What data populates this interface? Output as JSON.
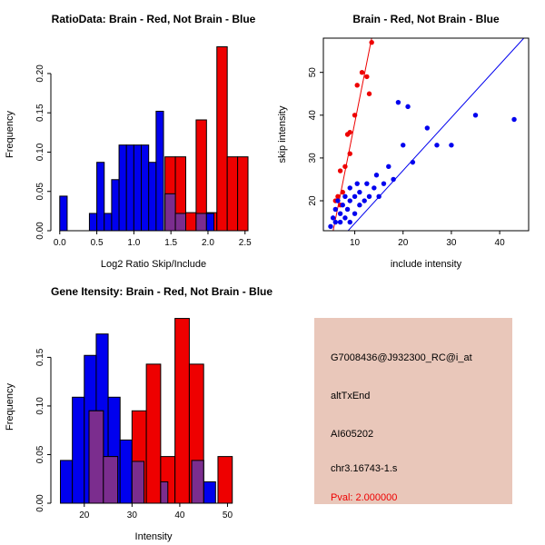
{
  "page": {
    "background": "#ffffff"
  },
  "palette": {
    "blue": "#0000ee",
    "red": "#ee0000",
    "purple": "#7b2d8e",
    "axis": "#000000"
  },
  "charts": [
    {
      "type": "bar",
      "title": "RatioData: Brain - Red, Not Brain - Blue",
      "xlabel": "Log2 Ratio Skip/Include",
      "ylabel": "Frequency",
      "xlim": [
        -0.12,
        2.65
      ],
      "ylim": [
        0,
        0.245
      ],
      "box": false,
      "legend": "none",
      "xticks": [
        {
          "v": 0,
          "l": "0.0"
        },
        {
          "v": 0.5,
          "l": "0.5"
        },
        {
          "v": 1,
          "l": "1.0"
        },
        {
          "v": 1.5,
          "l": "1.5"
        },
        {
          "v": 2,
          "l": "2.0"
        },
        {
          "v": 2.5,
          "l": "2.5"
        }
      ],
      "yticks": [
        {
          "v": 0,
          "l": "0.00"
        },
        {
          "v": 0.05,
          "l": "0.05"
        },
        {
          "v": 0.1,
          "l": "0.10"
        },
        {
          "v": 0.15,
          "l": "0.15"
        },
        {
          "v": 0.2,
          "l": "0.20"
        }
      ],
      "bars": [
        {
          "x0": 0.0,
          "x1": 0.1,
          "h": 0.044,
          "c": "blue"
        },
        {
          "x0": 0.4,
          "x1": 0.5,
          "h": 0.022,
          "c": "blue"
        },
        {
          "x0": 0.5,
          "x1": 0.6,
          "h": 0.087,
          "c": "blue"
        },
        {
          "x0": 0.6,
          "x1": 0.7,
          "h": 0.022,
          "c": "blue"
        },
        {
          "x0": 0.7,
          "x1": 0.8,
          "h": 0.065,
          "c": "blue"
        },
        {
          "x0": 0.8,
          "x1": 0.9,
          "h": 0.109,
          "c": "blue"
        },
        {
          "x0": 0.9,
          "x1": 1.0,
          "h": 0.109,
          "c": "blue"
        },
        {
          "x0": 1.0,
          "x1": 1.1,
          "h": 0.109,
          "c": "blue"
        },
        {
          "x0": 1.1,
          "x1": 1.2,
          "h": 0.109,
          "c": "blue"
        },
        {
          "x0": 1.2,
          "x1": 1.3,
          "h": 0.087,
          "c": "blue"
        },
        {
          "x0": 1.3,
          "x1": 1.4,
          "h": 0.152,
          "c": "blue"
        },
        {
          "x0": 1.42,
          "x1": 1.56,
          "h": 0.094,
          "c": "red"
        },
        {
          "x0": 1.56,
          "x1": 1.7,
          "h": 0.094,
          "c": "red"
        },
        {
          "x0": 1.7,
          "x1": 1.84,
          "h": 0.023,
          "c": "red"
        },
        {
          "x0": 1.84,
          "x1": 1.98,
          "h": 0.141,
          "c": "red"
        },
        {
          "x0": 1.98,
          "x1": 2.12,
          "h": 0.023,
          "c": "red"
        },
        {
          "x0": 2.12,
          "x1": 2.26,
          "h": 0.234,
          "c": "red"
        },
        {
          "x0": 2.26,
          "x1": 2.4,
          "h": 0.094,
          "c": "red"
        },
        {
          "x0": 2.4,
          "x1": 2.54,
          "h": 0.094,
          "c": "red"
        },
        {
          "x0": 1.42,
          "x1": 1.56,
          "h": 0.047,
          "c": "purple"
        },
        {
          "x0": 1.56,
          "x1": 1.7,
          "h": 0.022,
          "c": "purple"
        },
        {
          "x0": 1.84,
          "x1": 1.98,
          "h": 0.022,
          "c": "purple"
        },
        {
          "x0": 1.98,
          "x1": 2.08,
          "h": 0.022,
          "c": "blue"
        }
      ]
    },
    {
      "type": "scatter",
      "title": "Brain - Red, Not Brain - Blue",
      "xlabel": "include intensity",
      "ylabel": "skip intensity",
      "xlim": [
        3.5,
        46
      ],
      "ylim": [
        13,
        58
      ],
      "box": true,
      "legend": "none",
      "xticks": [
        {
          "v": 10,
          "l": "10"
        },
        {
          "v": 20,
          "l": "20"
        },
        {
          "v": 30,
          "l": "30"
        },
        {
          "v": 40,
          "l": "40"
        }
      ],
      "yticks": [
        {
          "v": 20,
          "l": "20"
        },
        {
          "v": 30,
          "l": "30"
        },
        {
          "v": 40,
          "l": "40"
        },
        {
          "v": 50,
          "l": "50"
        }
      ],
      "lines": [
        {
          "x1": 5,
          "y1": 10,
          "x2": 13.5,
          "y2": 58,
          "c": "red"
        },
        {
          "x1": 7,
          "y1": 11,
          "x2": 45,
          "y2": 58,
          "c": "blue"
        }
      ],
      "points": [
        {
          "x": 6,
          "y": 20,
          "c": "red"
        },
        {
          "x": 6.5,
          "y": 21,
          "c": "red"
        },
        {
          "x": 7,
          "y": 19,
          "c": "red"
        },
        {
          "x": 7.5,
          "y": 22,
          "c": "red"
        },
        {
          "x": 7,
          "y": 27,
          "c": "red"
        },
        {
          "x": 8,
          "y": 28,
          "c": "red"
        },
        {
          "x": 8.5,
          "y": 35.5,
          "c": "red"
        },
        {
          "x": 9,
          "y": 36,
          "c": "red"
        },
        {
          "x": 9,
          "y": 31,
          "c": "red"
        },
        {
          "x": 10,
          "y": 40,
          "c": "red"
        },
        {
          "x": 10.5,
          "y": 47,
          "c": "red"
        },
        {
          "x": 11.5,
          "y": 50,
          "c": "red"
        },
        {
          "x": 12.5,
          "y": 49,
          "c": "red"
        },
        {
          "x": 13,
          "y": 45,
          "c": "red"
        },
        {
          "x": 13.5,
          "y": 57,
          "c": "red"
        },
        {
          "x": 5,
          "y": 14,
          "c": "blue"
        },
        {
          "x": 5.5,
          "y": 16,
          "c": "blue"
        },
        {
          "x": 6,
          "y": 15,
          "c": "blue"
        },
        {
          "x": 6,
          "y": 18,
          "c": "blue"
        },
        {
          "x": 6.5,
          "y": 20,
          "c": "blue"
        },
        {
          "x": 7,
          "y": 15,
          "c": "blue"
        },
        {
          "x": 7,
          "y": 17,
          "c": "blue"
        },
        {
          "x": 7.5,
          "y": 19,
          "c": "blue"
        },
        {
          "x": 8,
          "y": 16,
          "c": "blue"
        },
        {
          "x": 8,
          "y": 21,
          "c": "blue"
        },
        {
          "x": 8.5,
          "y": 18,
          "c": "blue"
        },
        {
          "x": 9,
          "y": 15,
          "c": "blue"
        },
        {
          "x": 9,
          "y": 20,
          "c": "blue"
        },
        {
          "x": 9,
          "y": 23,
          "c": "blue"
        },
        {
          "x": 10,
          "y": 17,
          "c": "blue"
        },
        {
          "x": 10,
          "y": 21,
          "c": "blue"
        },
        {
          "x": 10.5,
          "y": 24,
          "c": "blue"
        },
        {
          "x": 11,
          "y": 19,
          "c": "blue"
        },
        {
          "x": 11,
          "y": 22,
          "c": "blue"
        },
        {
          "x": 12,
          "y": 20,
          "c": "blue"
        },
        {
          "x": 12.5,
          "y": 24,
          "c": "blue"
        },
        {
          "x": 13,
          "y": 21,
          "c": "blue"
        },
        {
          "x": 14,
          "y": 23,
          "c": "blue"
        },
        {
          "x": 14.5,
          "y": 26,
          "c": "blue"
        },
        {
          "x": 15,
          "y": 21,
          "c": "blue"
        },
        {
          "x": 16,
          "y": 24,
          "c": "blue"
        },
        {
          "x": 17,
          "y": 28,
          "c": "blue"
        },
        {
          "x": 18,
          "y": 25,
          "c": "blue"
        },
        {
          "x": 19,
          "y": 43,
          "c": "blue"
        },
        {
          "x": 20,
          "y": 33,
          "c": "blue"
        },
        {
          "x": 21,
          "y": 42,
          "c": "blue"
        },
        {
          "x": 22,
          "y": 29,
          "c": "blue"
        },
        {
          "x": 25,
          "y": 37,
          "c": "blue"
        },
        {
          "x": 27,
          "y": 33,
          "c": "blue"
        },
        {
          "x": 30,
          "y": 33,
          "c": "blue"
        },
        {
          "x": 35,
          "y": 40,
          "c": "blue"
        },
        {
          "x": 43,
          "y": 39,
          "c": "blue"
        }
      ]
    },
    {
      "type": "bar",
      "title": "Gene Itensity: Brain - Red, Not Brain - Blue",
      "xlabel": "Intensity",
      "ylabel": "Frequency",
      "xlim": [
        13,
        56
      ],
      "ylim": [
        0,
        0.198
      ],
      "box": false,
      "legend": "none",
      "xticks": [
        {
          "v": 20,
          "l": "20"
        },
        {
          "v": 30,
          "l": "30"
        },
        {
          "v": 40,
          "l": "40"
        },
        {
          "v": 50,
          "l": "50"
        }
      ],
      "yticks": [
        {
          "v": 0,
          "l": "0.00"
        },
        {
          "v": 0.05,
          "l": "0.05"
        },
        {
          "v": 0.1,
          "l": "0.10"
        },
        {
          "v": 0.15,
          "l": "0.15"
        }
      ],
      "bars": [
        {
          "x0": 15,
          "x1": 17.5,
          "h": 0.044,
          "c": "blue"
        },
        {
          "x0": 17.5,
          "x1": 20,
          "h": 0.109,
          "c": "blue"
        },
        {
          "x0": 20,
          "x1": 22.5,
          "h": 0.152,
          "c": "blue"
        },
        {
          "x0": 22.5,
          "x1": 25,
          "h": 0.174,
          "c": "blue"
        },
        {
          "x0": 25,
          "x1": 27.5,
          "h": 0.109,
          "c": "blue"
        },
        {
          "x0": 27.5,
          "x1": 30,
          "h": 0.065,
          "c": "blue"
        },
        {
          "x0": 30,
          "x1": 32.5,
          "h": 0.043,
          "c": "blue"
        },
        {
          "x0": 35,
          "x1": 37.5,
          "h": 0.022,
          "c": "blue"
        },
        {
          "x0": 42.5,
          "x1": 45,
          "h": 0.044,
          "c": "blue"
        },
        {
          "x0": 45,
          "x1": 47.5,
          "h": 0.022,
          "c": "blue"
        },
        {
          "x0": 21,
          "x1": 24,
          "h": 0.095,
          "c": "red"
        },
        {
          "x0": 24,
          "x1": 27,
          "h": 0.048,
          "c": "red"
        },
        {
          "x0": 30,
          "x1": 33,
          "h": 0.095,
          "c": "red"
        },
        {
          "x0": 33,
          "x1": 36,
          "h": 0.143,
          "c": "red"
        },
        {
          "x0": 36,
          "x1": 39,
          "h": 0.048,
          "c": "red"
        },
        {
          "x0": 39,
          "x1": 42,
          "h": 0.19,
          "c": "red"
        },
        {
          "x0": 42,
          "x1": 45,
          "h": 0.143,
          "c": "red"
        },
        {
          "x0": 48,
          "x1": 51,
          "h": 0.048,
          "c": "red"
        },
        {
          "x0": 21,
          "x1": 24,
          "h": 0.095,
          "c": "purple"
        },
        {
          "x0": 24,
          "x1": 27,
          "h": 0.048,
          "c": "purple"
        },
        {
          "x0": 30,
          "x1": 32.5,
          "h": 0.043,
          "c": "purple"
        },
        {
          "x0": 36,
          "x1": 37.5,
          "h": 0.022,
          "c": "purple"
        },
        {
          "x0": 42.5,
          "x1": 45,
          "h": 0.044,
          "c": "purple"
        }
      ]
    }
  ],
  "info": {
    "background": "#e9c7ba",
    "lines": [
      {
        "text": "G7008436@J932300_RC@i_at",
        "color": "#000000"
      },
      {
        "text": "altTxEnd",
        "color": "#000000"
      },
      {
        "text": "AI605202",
        "color": "#000000"
      },
      {
        "text": "chr3.16743-1.s",
        "color": "#000000"
      },
      {
        "text": "Pval: 2.000000",
        "color": "#ee0000"
      }
    ]
  }
}
